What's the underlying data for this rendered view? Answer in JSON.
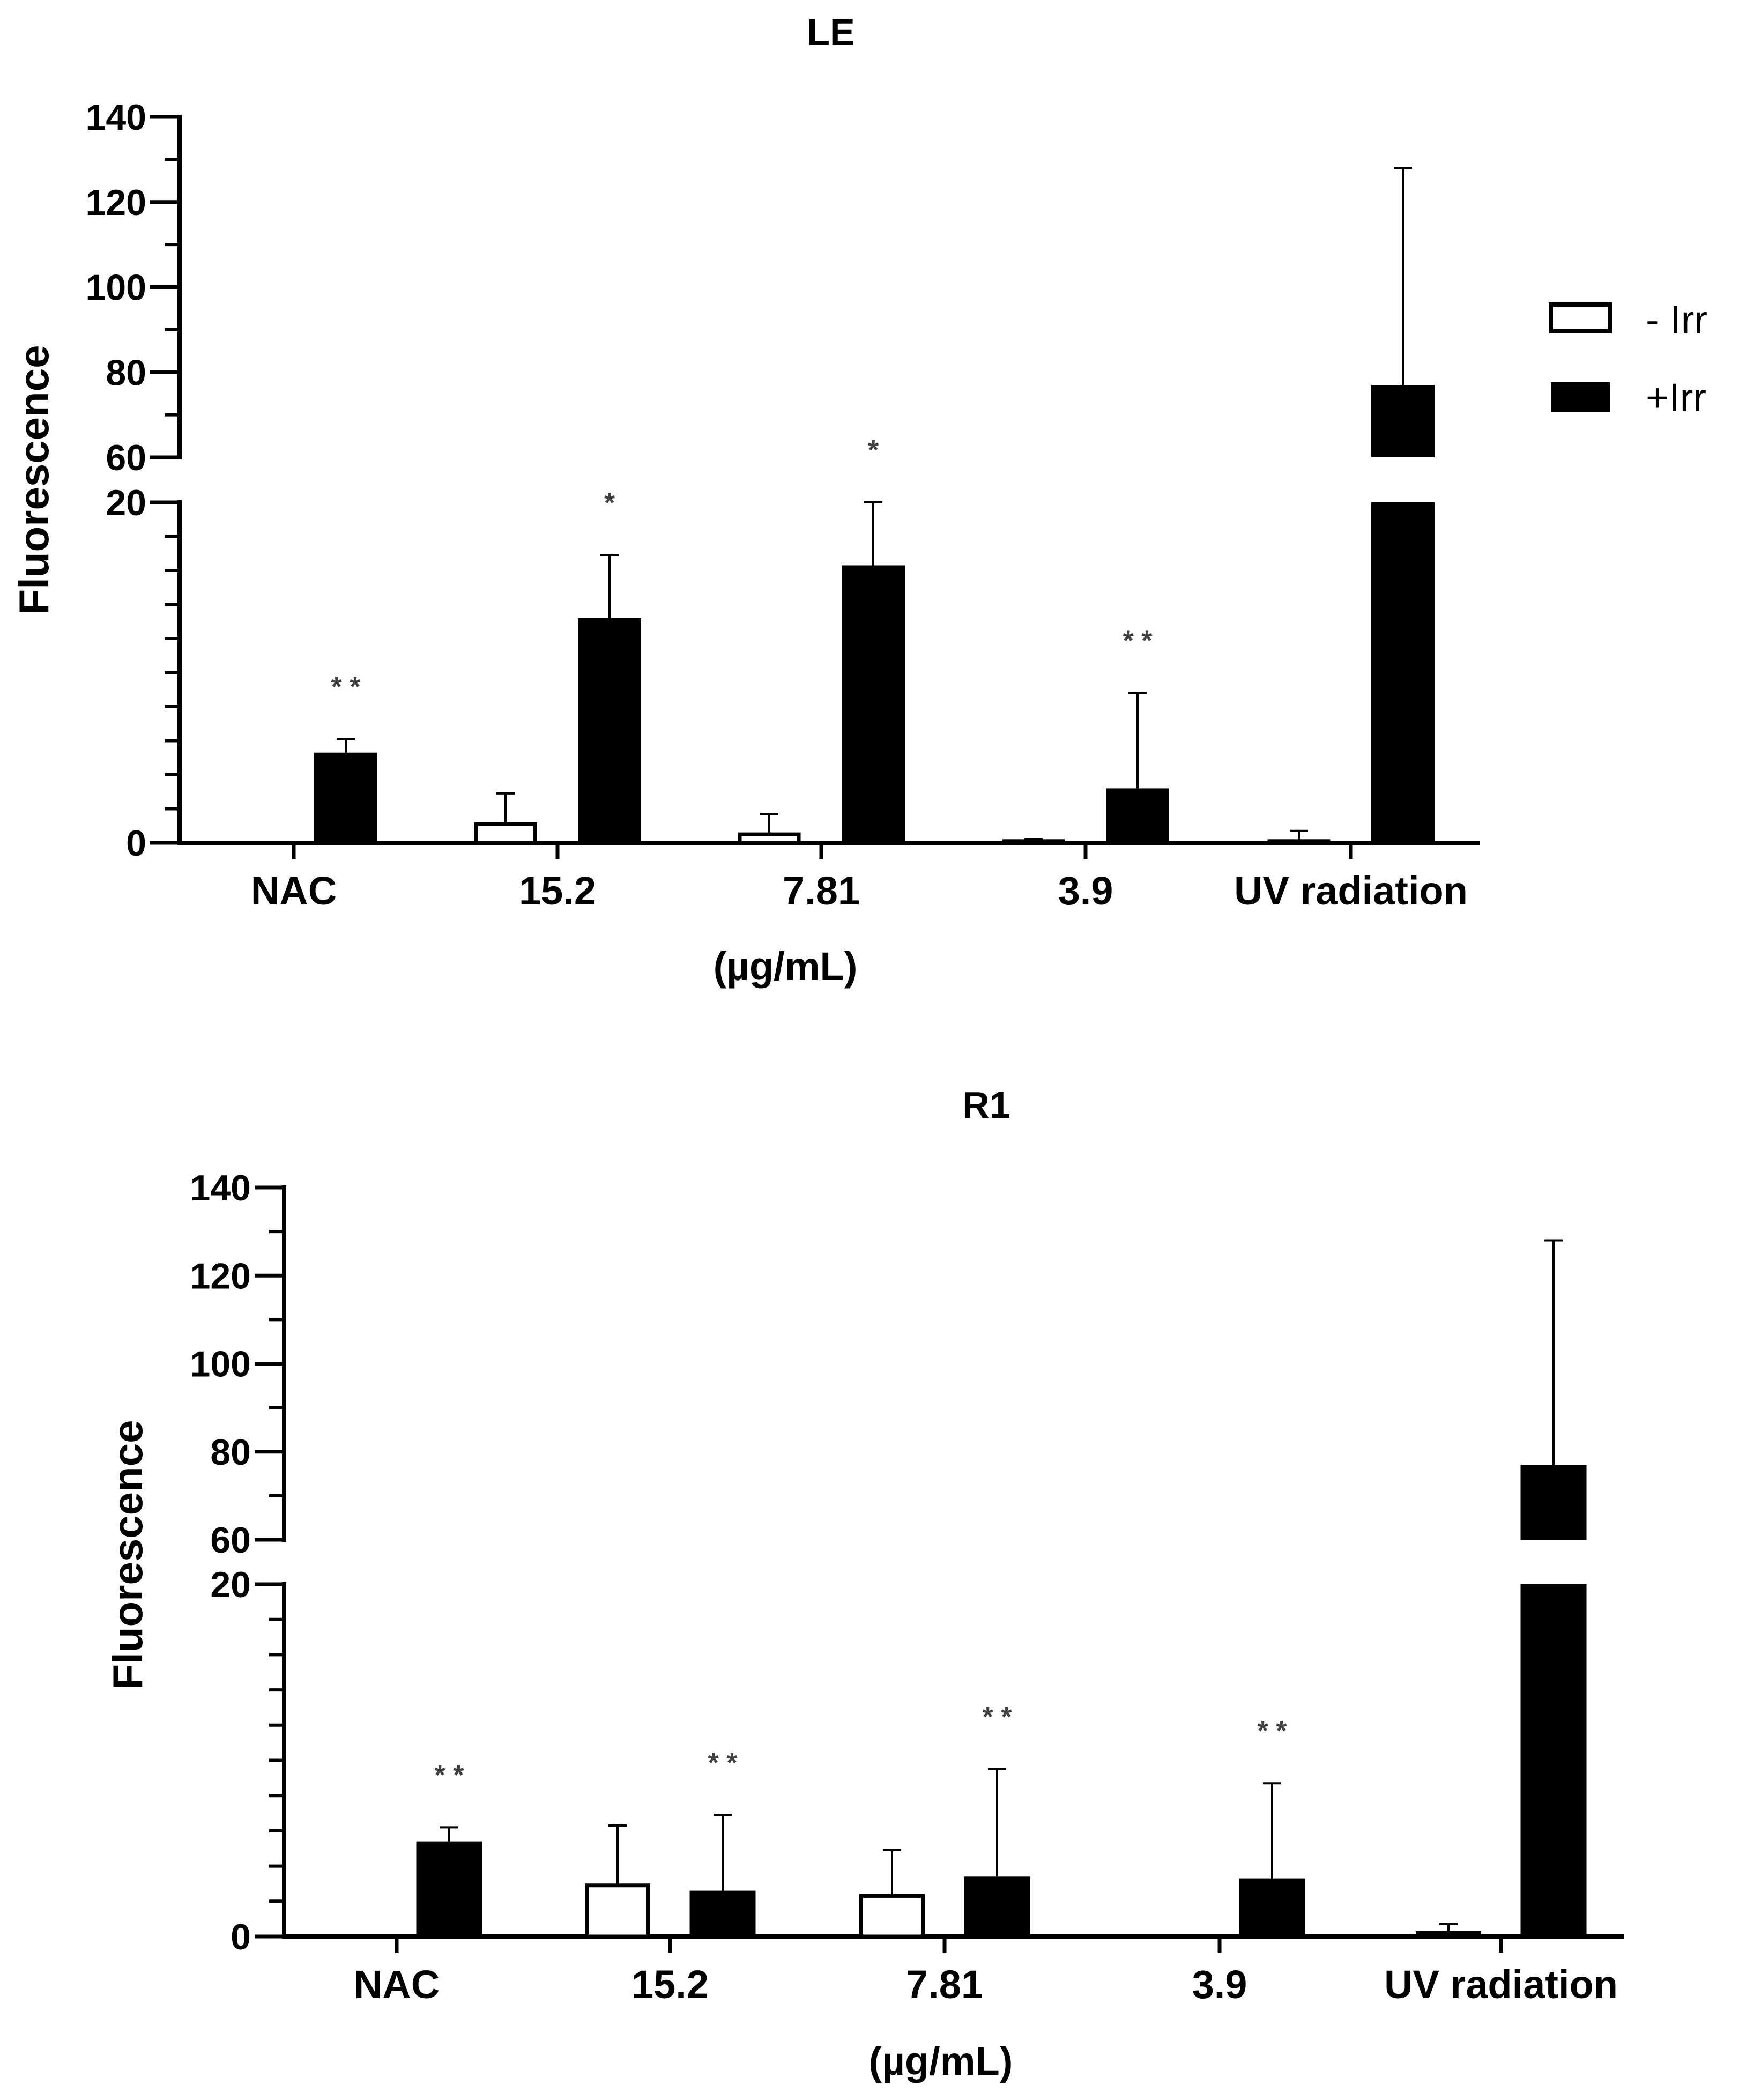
{
  "colors": {
    "minus_irr": "#ffffff",
    "plus_irr": "#000000",
    "axis": "#000000",
    "significance": "#404040"
  },
  "legend": {
    "items": [
      {
        "label": "- Irr",
        "fill": "#ffffff"
      },
      {
        "label": "+Irr",
        "fill": "#000000"
      }
    ]
  },
  "chart_data": [
    {
      "type": "bar",
      "title": "LE",
      "xlabel": "(µg/mL)",
      "ylabel": "Fluorescence",
      "y_axis_break": {
        "lower_range": [
          0,
          20
        ],
        "upper_range": [
          60,
          140
        ]
      },
      "yticks_lower": [
        "0",
        "20"
      ],
      "yticks_upper": [
        "60",
        "80",
        "100",
        "120",
        "140"
      ],
      "categories": [
        "NAC",
        "15.2",
        "7.81",
        "3.9",
        "UV radiation"
      ],
      "series": [
        {
          "name": "- Irr",
          "values": [
            null,
            1.1,
            0.5,
            0.1,
            0.1
          ],
          "errors": [
            null,
            1.8,
            1.2,
            0.1,
            0.6
          ]
        },
        {
          "name": "+Irr",
          "values": [
            5.3,
            13.2,
            16.3,
            3.2,
            77
          ],
          "errors": [
            0.8,
            3.7,
            3.7,
            5.6,
            51
          ]
        }
      ],
      "significance": [
        "**",
        "*",
        "*",
        "**",
        ""
      ]
    },
    {
      "type": "bar",
      "title": "R1",
      "xlabel": "(µg/mL)",
      "ylabel": "Fluorescence",
      "y_axis_break": {
        "lower_range": [
          0,
          20
        ],
        "upper_range": [
          60,
          140
        ]
      },
      "yticks_lower": [
        "0",
        "20"
      ],
      "yticks_upper": [
        "60",
        "80",
        "100",
        "120",
        "140"
      ],
      "categories": [
        "NAC",
        "15.2",
        "7.81",
        "3.9",
        "UV radiation"
      ],
      "series": [
        {
          "name": "- Irr",
          "values": [
            null,
            2.9,
            2.3,
            null,
            0.2
          ],
          "errors": [
            null,
            3.4,
            2.6,
            null,
            0.5
          ]
        },
        {
          "name": "+Irr",
          "values": [
            5.4,
            2.6,
            3.4,
            3.3,
            77
          ],
          "errors": [
            0.8,
            4.3,
            6.1,
            5.4,
            51
          ]
        }
      ],
      "significance": [
        "**",
        "**",
        "**",
        "**",
        ""
      ]
    }
  ]
}
